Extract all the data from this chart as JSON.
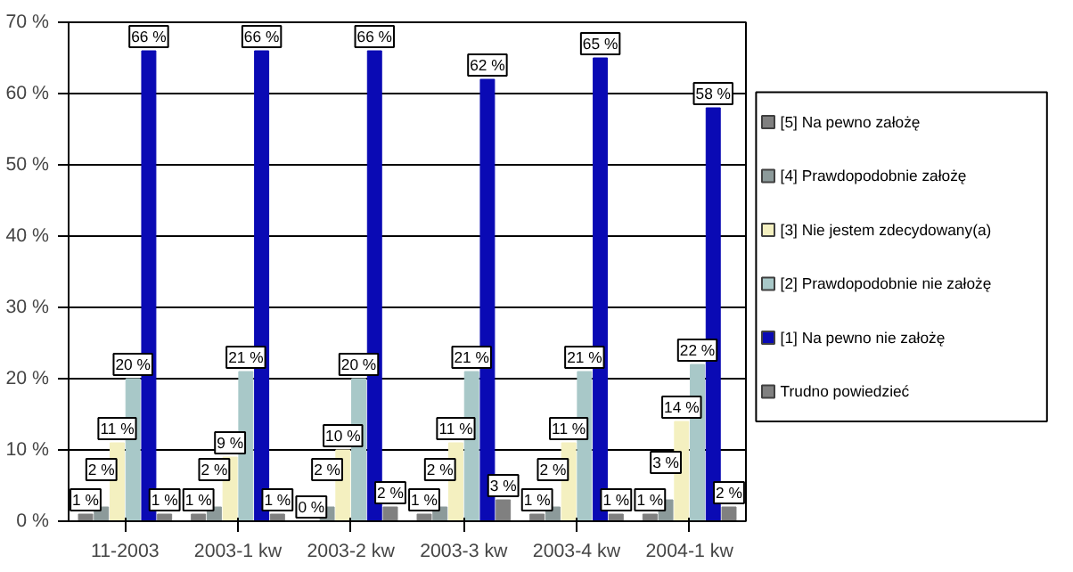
{
  "chart_data": {
    "type": "bar",
    "categories": [
      "11-2003",
      "2003-1 kw",
      "2003-2 kw",
      "2003-3 kw",
      "2003-4 kw",
      "2004-1 kw"
    ],
    "series": [
      {
        "name": "[5] Na pewno założę",
        "color": "#808080",
        "values": [
          1,
          1,
          0,
          1,
          1,
          1
        ],
        "value_labels": [
          "1 %",
          "1 %",
          "0 %",
          "1 %",
          "1 %",
          "1 %"
        ]
      },
      {
        "name": "[4] Prawdopodobnie założę",
        "color": "#8c9a9a",
        "values": [
          2,
          2,
          2,
          2,
          2,
          3
        ],
        "value_labels": [
          "2 %",
          "2 %",
          "2 %",
          "2 %",
          "2 %",
          "3 %"
        ]
      },
      {
        "name": "[3] Nie jestem zdecydowany(a)",
        "color": "#f4f0c0",
        "values": [
          11,
          9,
          10,
          11,
          11,
          14
        ],
        "value_labels": [
          "11 %",
          "9 %",
          "10 %",
          "11 %",
          "11 %",
          "14 %"
        ]
      },
      {
        "name": "[2] Prawdopodobnie nie założę",
        "color": "#a8c8c8",
        "values": [
          20,
          21,
          20,
          21,
          21,
          22
        ],
        "value_labels": [
          "20 %",
          "21 %",
          "20 %",
          "21 %",
          "21 %",
          "22 %"
        ]
      },
      {
        "name": "[1] Na pewno nie założę",
        "color": "#0a0ab4",
        "values": [
          66,
          66,
          66,
          62,
          65,
          58
        ],
        "value_labels": [
          "66 %",
          "66 %",
          "66 %",
          "62 %",
          "65 %",
          "58 %"
        ]
      },
      {
        "name": "Trudno powiedzieć",
        "color": "#808080",
        "values": [
          1,
          1,
          2,
          3,
          1,
          2
        ],
        "value_labels": [
          "1 %",
          "1 %",
          "2 %",
          "3 %",
          "1 %",
          "2 %"
        ]
      }
    ],
    "ylim": [
      0,
      70
    ],
    "yticks": [
      {
        "value": 0,
        "label": "0 %"
      },
      {
        "value": 10,
        "label": "10 %"
      },
      {
        "value": 20,
        "label": "20 %"
      },
      {
        "value": 30,
        "label": "30 %"
      },
      {
        "value": 40,
        "label": "40 %"
      },
      {
        "value": 50,
        "label": "50 %"
      },
      {
        "value": 60,
        "label": "60 %"
      },
      {
        "value": 70,
        "label": "70 %"
      }
    ],
    "grid": "y",
    "legend": "right"
  }
}
